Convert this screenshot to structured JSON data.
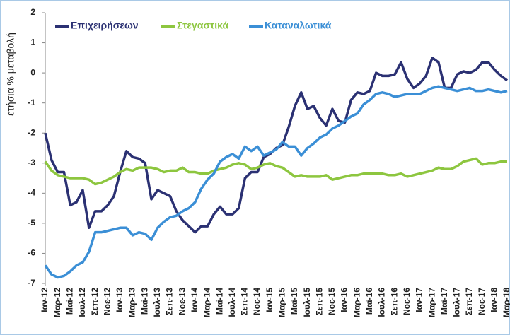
{
  "chart_data": {
    "type": "line",
    "y_label": "ετήσια % μεταβολή",
    "categories": [
      "Ιαν-12",
      null,
      "Μαρ-12",
      null,
      "Μαϊ-12",
      null,
      "Ιουλ-12",
      null,
      "Σεπ-12",
      null,
      "Νοε-12",
      null,
      "Ιαν-13",
      null,
      "Μαρ-13",
      null,
      "Μαϊ-13",
      null,
      "Ιουλ-13",
      null,
      "Σεπ-13",
      null,
      "Νοε-13",
      null,
      "Ιαν-14",
      null,
      "Μαρ-14",
      null,
      "Μαϊ-14",
      null,
      "Ιουλ-14",
      null,
      "Σεπ-14",
      null,
      "Νοε-14",
      null,
      "Ιαν-15",
      null,
      "Μαρ-15",
      null,
      "Μαϊ-15",
      null,
      "Ιουλ-15",
      null,
      "Σεπ-15",
      null,
      "Νοε-15",
      null,
      "Ιαν-16",
      null,
      "Μαρ-16",
      null,
      "Μαϊ-16",
      null,
      "Ιουλ-16",
      null,
      "Σεπ-16",
      null,
      "Νοε-16",
      null,
      "Ιαν-17",
      null,
      "Μαρ-17",
      null,
      "Μαϊ-17",
      null,
      "Ιουλ-17",
      null,
      "Σεπ-17",
      null,
      "Νοε-17",
      null,
      "Ιαν-18",
      null,
      "Μαρ-18"
    ],
    "series": [
      {
        "name": "Επιχειρήσεων",
        "color": "#2b3173",
        "values": [
          -2.0,
          -2.9,
          -3.3,
          -3.3,
          -4.4,
          -4.3,
          -3.9,
          -5.15,
          -4.6,
          -4.6,
          -4.4,
          -4.1,
          -3.3,
          -2.6,
          -2.8,
          -2.85,
          -3.0,
          -4.2,
          -3.9,
          -4.0,
          -4.1,
          -4.6,
          -4.9,
          -5.1,
          -5.3,
          -5.1,
          -5.1,
          -4.7,
          -4.45,
          -4.7,
          -4.7,
          -4.5,
          -3.5,
          -3.3,
          -3.3,
          -2.8,
          -2.7,
          -2.5,
          -2.4,
          -1.8,
          -1.1,
          -0.65,
          -1.2,
          -1.1,
          -1.5,
          -1.75,
          -1.2,
          -1.6,
          -1.65,
          -0.9,
          -0.65,
          -0.7,
          -0.6,
          0.0,
          -0.1,
          -0.1,
          -0.05,
          0.35,
          -0.2,
          -0.5,
          -0.35,
          -0.1,
          0.5,
          0.35,
          -0.5,
          -0.5,
          -0.05,
          0.05,
          0.0,
          0.1,
          0.35,
          0.35,
          0.1,
          -0.1,
          -0.25
        ]
      },
      {
        "name": "Στεγαστικά",
        "color": "#8dc63f",
        "values": [
          -2.95,
          -3.25,
          -3.4,
          -3.45,
          -3.5,
          -3.5,
          -3.5,
          -3.55,
          -3.7,
          -3.65,
          -3.55,
          -3.45,
          -3.3,
          -3.2,
          -3.25,
          -3.15,
          -3.15,
          -3.15,
          -3.2,
          -3.3,
          -3.25,
          -3.25,
          -3.15,
          -3.3,
          -3.3,
          -3.35,
          -3.35,
          -3.25,
          -3.2,
          -3.15,
          -3.05,
          -3.0,
          -3.05,
          -3.2,
          -3.15,
          -3.05,
          -3.0,
          -3.1,
          -3.15,
          -3.3,
          -3.45,
          -3.4,
          -3.45,
          -3.45,
          -3.45,
          -3.4,
          -3.55,
          -3.5,
          -3.45,
          -3.4,
          -3.4,
          -3.35,
          -3.35,
          -3.35,
          -3.35,
          -3.4,
          -3.4,
          -3.35,
          -3.45,
          -3.4,
          -3.35,
          -3.3,
          -3.25,
          -3.15,
          -3.2,
          -3.2,
          -3.1,
          -2.95,
          -2.9,
          -2.85,
          -3.05,
          -3.0,
          -3.0,
          -2.95,
          -2.95
        ]
      },
      {
        "name": "Καταναλωτικά",
        "color": "#3b8fd6",
        "values": [
          -6.4,
          -6.7,
          -6.8,
          -6.75,
          -6.6,
          -6.4,
          -6.3,
          -5.95,
          -5.3,
          -5.3,
          -5.25,
          -5.2,
          -5.15,
          -5.15,
          -5.4,
          -5.3,
          -5.35,
          -5.55,
          -5.15,
          -4.95,
          -4.8,
          -4.75,
          -4.6,
          -4.5,
          -4.3,
          -3.85,
          -3.55,
          -3.35,
          -2.95,
          -2.8,
          -2.7,
          -2.85,
          -2.45,
          -2.6,
          -2.45,
          -2.75,
          -2.65,
          -2.55,
          -2.3,
          -2.45,
          -2.45,
          -2.75,
          -2.5,
          -2.35,
          -2.15,
          -2.05,
          -1.85,
          -1.75,
          -1.6,
          -1.45,
          -1.35,
          -1.05,
          -0.9,
          -0.7,
          -0.65,
          -0.7,
          -0.8,
          -0.75,
          -0.7,
          -0.7,
          -0.7,
          -0.6,
          -0.5,
          -0.45,
          -0.5,
          -0.55,
          -0.6,
          -0.55,
          -0.5,
          -0.6,
          -0.6,
          -0.55,
          -0.6,
          -0.65,
          -0.6
        ]
      }
    ],
    "ylim": [
      -7,
      2
    ],
    "yticks": [
      -7,
      -6,
      -5,
      -4,
      -3,
      -2,
      -1,
      0,
      1,
      2
    ],
    "legend": "upper left"
  }
}
